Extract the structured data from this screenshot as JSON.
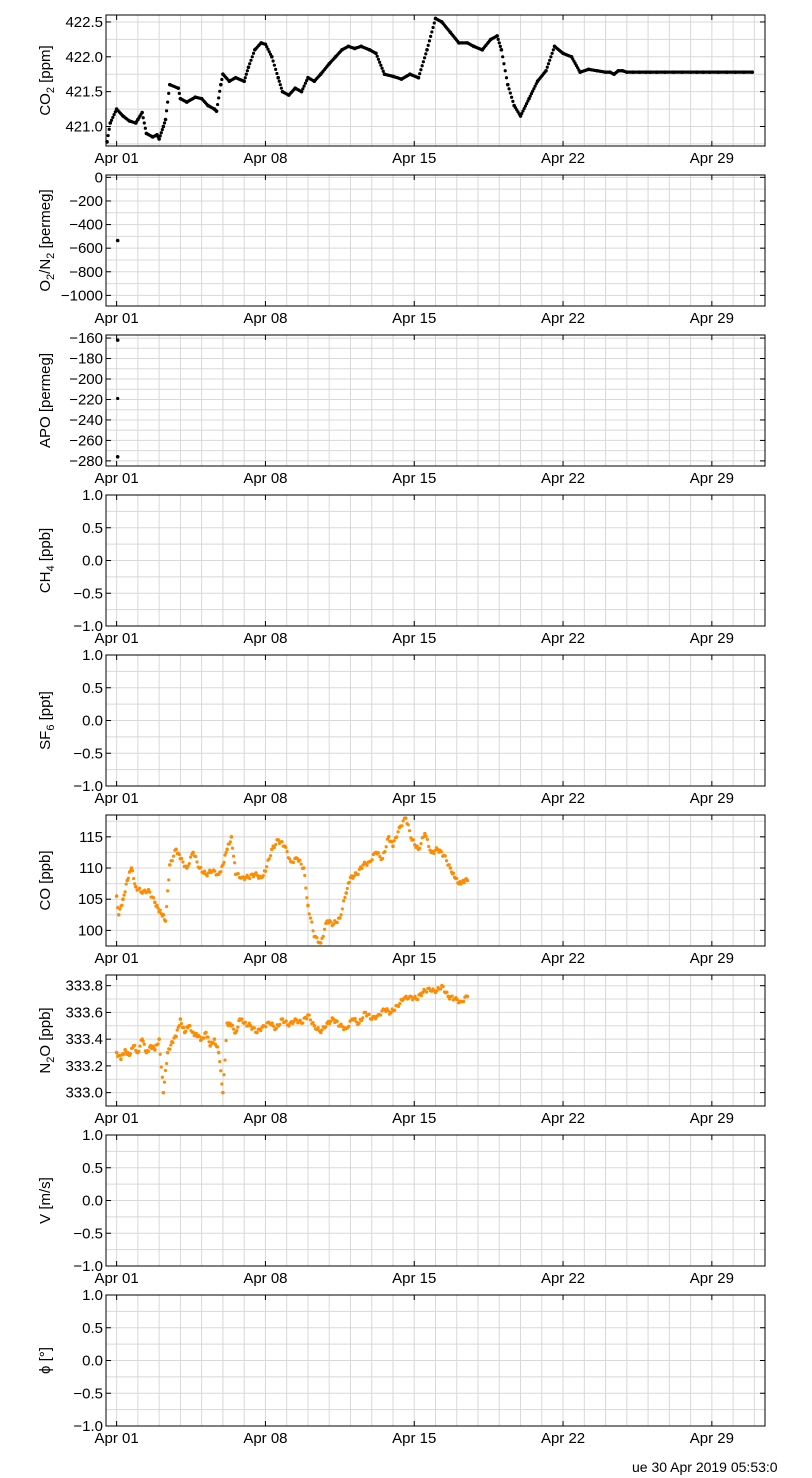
{
  "footer": {
    "timestamp": "ue 30 Apr 2019 05:53:0"
  },
  "colors": {
    "grid": "#d8d8d8",
    "axis": "#000000"
  },
  "chart_data": [
    {
      "type": "scatter",
      "ylabel": [
        "CO",
        "2",
        " [ppm]"
      ],
      "ylim": [
        420.72,
        422.6
      ],
      "yticks": [
        "421.0",
        "421.5",
        "422.0",
        "422.5"
      ],
      "ytick_values": [
        421.0,
        421.5,
        422.0,
        422.5
      ],
      "xlim_days": [
        -0.5,
        30.5
      ],
      "xticks": [
        "Apr 01",
        "Apr 08",
        "Apr 15",
        "Apr 22",
        "Apr 29"
      ],
      "grid": true,
      "color": "#000000",
      "series": [
        {
          "x": [
            -0.45,
            -0.3,
            0.0,
            0.3,
            0.6,
            0.9,
            1.0,
            1.2,
            1.4,
            1.7,
            1.9,
            2.0,
            2.2,
            2.3,
            2.5,
            2.9,
            3.0,
            3.3,
            3.7,
            4.0,
            4.3,
            4.6,
            4.7,
            4.9,
            5.0,
            5.3,
            5.6,
            6.0,
            6.2,
            6.5,
            6.8,
            7.0,
            7.3,
            7.6,
            7.8,
            8.1,
            8.4,
            8.7,
            9.0,
            9.3,
            9.6,
            10.0,
            10.3,
            10.6,
            10.9,
            11.2,
            11.5,
            11.9,
            12.2,
            12.6,
            13.0,
            13.4,
            13.8,
            14.2,
            14.6,
            15.0,
            15.3,
            15.7,
            16.1,
            16.5,
            16.8,
            17.2,
            17.6,
            17.9,
            18.1,
            18.4,
            18.7,
            19.0,
            19.4,
            19.8,
            20.2,
            20.6,
            21.0,
            21.4,
            21.8,
            22.2,
            22.6,
            23.0,
            23.2,
            23.4,
            23.6,
            23.8,
            24.0,
            24.3,
            24.6,
            24.9,
            25.1,
            25.4,
            25.8,
            26.2,
            26.6,
            27.0,
            27.3,
            27.6,
            27.9,
            28.3,
            28.7,
            29.1,
            29.5,
            29.9
          ],
          "y": [
            420.78,
            421.05,
            421.25,
            421.15,
            421.08,
            421.05,
            421.1,
            421.2,
            420.9,
            420.85,
            420.88,
            420.82,
            421.0,
            421.1,
            421.6,
            421.55,
            421.4,
            421.35,
            421.42,
            421.4,
            421.3,
            421.25,
            421.22,
            421.6,
            421.75,
            421.65,
            421.7,
            421.65,
            421.85,
            422.1,
            422.2,
            422.18,
            422.0,
            421.7,
            421.5,
            421.45,
            421.55,
            421.5,
            421.7,
            421.65,
            421.75,
            421.9,
            422.0,
            422.1,
            422.15,
            422.12,
            422.15,
            422.1,
            422.05,
            421.75,
            421.72,
            421.68,
            421.75,
            421.7,
            422.1,
            422.55,
            422.5,
            422.35,
            422.2,
            422.2,
            422.15,
            422.1,
            422.25,
            422.3,
            422.1,
            421.6,
            421.3,
            421.15,
            421.4,
            421.65,
            421.8,
            422.15,
            422.05,
            422.0,
            421.78,
            421.82,
            421.8,
            421.78,
            421.78,
            421.75,
            421.8,
            421.8,
            421.78,
            421.78,
            421.78,
            421.78,
            421.78,
            421.78,
            421.78,
            421.78,
            421.78,
            421.78,
            421.78,
            421.78,
            421.78,
            421.78,
            421.78,
            421.78,
            421.78,
            421.78
          ]
        }
      ]
    },
    {
      "type": "scatter",
      "ylabel": [
        "O",
        "2",
        "/N",
        "2",
        " [permeg]"
      ],
      "ylim": [
        -1090,
        20
      ],
      "yticks": [
        "0",
        "−200",
        "−400",
        "−600",
        "−800",
        "−1000"
      ],
      "ytick_values": [
        0,
        -200,
        -400,
        -600,
        -800,
        -1000
      ],
      "xlim_days": [
        -0.5,
        30.5
      ],
      "xticks": [
        "Apr 01",
        "Apr 08",
        "Apr 15",
        "Apr 22",
        "Apr 29"
      ],
      "grid": true,
      "color": "#000000",
      "series": [
        {
          "x": [
            0.05
          ],
          "y": [
            -535
          ]
        }
      ]
    },
    {
      "type": "scatter",
      "ylabel": [
        "APO [permeg]"
      ],
      "ylim": [
        -285,
        -157
      ],
      "yticks": [
        "−160",
        "−180",
        "−200",
        "−220",
        "−240",
        "−260",
        "−280"
      ],
      "ytick_values": [
        -160,
        -180,
        -200,
        -220,
        -240,
        -260,
        -280
      ],
      "xlim_days": [
        -0.5,
        30.5
      ],
      "xticks": [
        "Apr 01",
        "Apr 08",
        "Apr 15",
        "Apr 22",
        "Apr 29"
      ],
      "grid": true,
      "color": "#000000",
      "series": [
        {
          "x": [
            0.05,
            0.05
          ],
          "y": [
            -162,
            -276
          ]
        }
      ]
    },
    {
      "type": "scatter",
      "ylabel": [
        "CH",
        "4",
        " [ppb]"
      ],
      "ylim": [
        -1.0,
        1.0
      ],
      "yticks": [
        "1.0",
        "0.5",
        "0.0",
        "−0.5",
        "−1.0"
      ],
      "ytick_values": [
        1.0,
        0.5,
        0.0,
        -0.5,
        -1.0
      ],
      "xlim_days": [
        -0.5,
        30.5
      ],
      "xticks": [
        "Apr 01",
        "Apr 08",
        "Apr 15",
        "Apr 22",
        "Apr 29"
      ],
      "grid": true,
      "color": "#000000",
      "series": []
    },
    {
      "type": "scatter",
      "ylabel": [
        "SF",
        "6",
        " [ppt]"
      ],
      "ylim": [
        -1.0,
        1.0
      ],
      "yticks": [
        "1.0",
        "0.5",
        "0.0",
        "−0.5",
        "−1.0"
      ],
      "ytick_values": [
        1.0,
        0.5,
        0.0,
        -0.5,
        -1.0
      ],
      "xlim_days": [
        -0.5,
        30.5
      ],
      "xticks": [
        "Apr 01",
        "Apr 08",
        "Apr 15",
        "Apr 22",
        "Apr 29"
      ],
      "grid": true,
      "color": "#000000",
      "series": []
    },
    {
      "type": "scatter",
      "ylabel": [
        "CO [ppb]"
      ],
      "ylim": [
        97.5,
        118.5
      ],
      "yticks": [
        "115",
        "110",
        "105",
        "100"
      ],
      "ytick_values": [
        115,
        110,
        105,
        100
      ],
      "xlim_days": [
        -0.5,
        30.5
      ],
      "xticks": [
        "Apr 01",
        "Apr 08",
        "Apr 15",
        "Apr 22",
        "Apr 29"
      ],
      "grid": true,
      "color": "#ff8c00",
      "series": [
        {
          "x": [
            0.0,
            0.1,
            0.3,
            0.5,
            0.7,
            0.9,
            1.2,
            1.5,
            1.8,
            2.0,
            2.2,
            2.3,
            2.5,
            2.8,
            3.0,
            3.3,
            3.6,
            3.9,
            4.2,
            4.5,
            4.8,
            5.0,
            5.2,
            5.4,
            5.6,
            5.9,
            6.2,
            6.5,
            6.8,
            7.0,
            7.3,
            7.6,
            7.9,
            8.2,
            8.5,
            8.8,
            9.0,
            9.3,
            9.6,
            9.9,
            10.2,
            10.5,
            10.8,
            11.0,
            11.3,
            11.6,
            11.9,
            12.2,
            12.5,
            12.8,
            13.0,
            13.3,
            13.6,
            13.9,
            14.2,
            14.5,
            14.8,
            15.1,
            15.4,
            15.7,
            15.9,
            16.1,
            16.3,
            16.5
          ],
          "y": [
            105.5,
            102.5,
            105.0,
            108.0,
            110.0,
            107.0,
            106.0,
            106.5,
            104.5,
            103.0,
            102.5,
            101.5,
            110.5,
            113.0,
            111.5,
            110.0,
            112.5,
            110.0,
            109.0,
            109.5,
            109.0,
            110.5,
            113.0,
            115.0,
            109.0,
            108.5,
            108.5,
            109.0,
            108.5,
            109.5,
            113.0,
            114.5,
            113.5,
            111.0,
            111.5,
            110.0,
            104.0,
            99.0,
            98.0,
            101.5,
            101.0,
            102.0,
            106.0,
            108.5,
            109.0,
            110.5,
            111.0,
            112.5,
            111.5,
            115.0,
            113.5,
            116.5,
            118.0,
            114.5,
            113.0,
            115.5,
            112.5,
            113.0,
            112.0,
            110.0,
            108.5,
            107.5,
            108.0,
            108.0
          ]
        }
      ]
    },
    {
      "type": "scatter",
      "ylabel": [
        "N",
        "2",
        "O [ppb]"
      ],
      "ylim": [
        332.9,
        333.88
      ],
      "yticks": [
        "333.8",
        "333.6",
        "333.4",
        "333.2",
        "333.0"
      ],
      "ytick_values": [
        333.8,
        333.6,
        333.4,
        333.2,
        333.0
      ],
      "xlim_days": [
        -0.5,
        30.5
      ],
      "xticks": [
        "Apr 01",
        "Apr 08",
        "Apr 15",
        "Apr 22",
        "Apr 29"
      ],
      "grid": true,
      "color": "#ff8c00",
      "series": [
        {
          "x": [
            0.0,
            0.2,
            0.4,
            0.6,
            0.8,
            1.0,
            1.2,
            1.4,
            1.6,
            1.8,
            2.0,
            2.2,
            2.4,
            2.6,
            2.8,
            3.0,
            3.2,
            3.4,
            3.6,
            3.8,
            4.0,
            4.2,
            4.4,
            4.6,
            4.8,
            5.0,
            5.2,
            5.4,
            5.6,
            5.8,
            6.0,
            6.3,
            6.6,
            6.9,
            7.2,
            7.5,
            7.8,
            8.1,
            8.4,
            8.7,
            9.0,
            9.3,
            9.6,
            9.9,
            10.2,
            10.5,
            10.8,
            11.1,
            11.4,
            11.7,
            12.0,
            12.3,
            12.6,
            12.9,
            13.2,
            13.5,
            13.8,
            14.1,
            14.4,
            14.7,
            15.0,
            15.3,
            15.6,
            15.9,
            16.2,
            16.5
          ],
          "y": [
            333.3,
            333.25,
            333.32,
            333.28,
            333.35,
            333.3,
            333.4,
            333.3,
            333.35,
            333.32,
            333.4,
            333.0,
            333.3,
            333.38,
            333.42,
            333.55,
            333.45,
            333.5,
            333.45,
            333.42,
            333.4,
            333.45,
            333.35,
            333.4,
            333.3,
            333.0,
            333.52,
            333.5,
            333.45,
            333.55,
            333.52,
            333.5,
            333.45,
            333.5,
            333.52,
            333.48,
            333.55,
            333.5,
            333.55,
            333.52,
            333.58,
            333.5,
            333.45,
            333.52,
            333.55,
            333.5,
            333.48,
            333.55,
            333.52,
            333.6,
            333.55,
            333.58,
            333.62,
            333.6,
            333.65,
            333.7,
            333.72,
            333.7,
            333.75,
            333.78,
            333.75,
            333.8,
            333.72,
            333.7,
            333.68,
            333.72
          ]
        }
      ]
    },
    {
      "type": "scatter",
      "ylabel": [
        "V [m/s]"
      ],
      "ylim": [
        -1.0,
        1.0
      ],
      "yticks": [
        "1.0",
        "0.5",
        "0.0",
        "−0.5",
        "−1.0"
      ],
      "ytick_values": [
        1.0,
        0.5,
        0.0,
        -0.5,
        -1.0
      ],
      "xlim_days": [
        -0.5,
        30.5
      ],
      "xticks": [
        "Apr 01",
        "Apr 08",
        "Apr 15",
        "Apr 22",
        "Apr 29"
      ],
      "grid": true,
      "color": "#000000",
      "series": []
    },
    {
      "type": "scatter",
      "ylabel": [
        "ϕ [°]"
      ],
      "ylim": [
        -1.0,
        1.0
      ],
      "yticks": [
        "1.0",
        "0.5",
        "0.0",
        "−0.5",
        "−1.0"
      ],
      "ytick_values": [
        1.0,
        0.5,
        0.0,
        -0.5,
        -1.0
      ],
      "xlim_days": [
        -0.5,
        30.5
      ],
      "xticks": [
        "Apr 01",
        "Apr 08",
        "Apr 15",
        "Apr 22",
        "Apr 29"
      ],
      "grid": true,
      "color": "#000000",
      "series": []
    }
  ]
}
